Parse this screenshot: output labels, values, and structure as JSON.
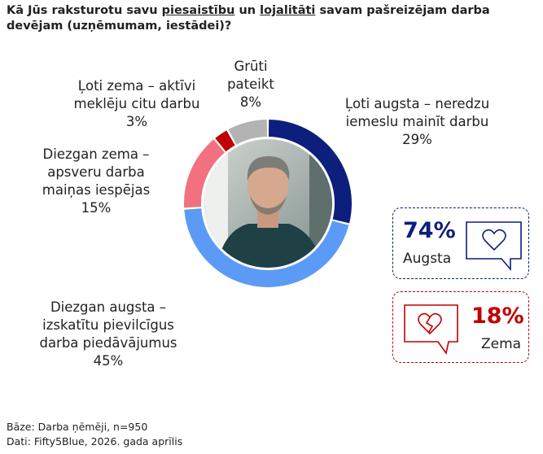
{
  "title_parts": [
    "Kā Jūs raksturotu savu ",
    "piesaistību",
    " un ",
    "lojalitāti",
    " savam pašreizējam darba devējam (uzņēmumam, iestādei)?"
  ],
  "chart_data": {
    "type": "donut",
    "categories": [
      "Ļoti augsta – neredzu iemeslu mainīt darbu",
      "Diezgan augsta – izskatītu pievilcīgus darba piedāvājumus",
      "Diezgan zema – apsveru darba maiņas iespējas",
      "Ļoti zema – aktīvi meklēju citu darbu",
      "Grūti pateikt"
    ],
    "values": [
      29,
      45,
      15,
      3,
      8
    ],
    "value_labels": [
      "29%",
      "45%",
      "15%",
      "3%",
      "8%"
    ],
    "colors": [
      "#0d1f7c",
      "#5b9bf5",
      "#f2707f",
      "#c00000",
      "#b3b3b3"
    ]
  },
  "summary": [
    {
      "value": "74%",
      "name": "Augsta"
    },
    {
      "value": "18%",
      "name": "Zema"
    }
  ],
  "footer": [
    "Bāze: Darba ņēmēji, n=950",
    "Dati: Fifty5Blue, 2026. gada aprīlis"
  ]
}
